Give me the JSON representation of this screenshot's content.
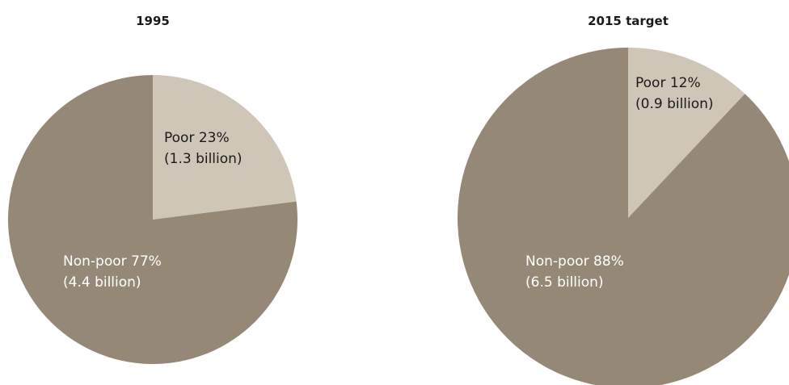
{
  "chart_data": [
    {
      "type": "pie",
      "title": "1995",
      "slices": [
        {
          "label": "Poor",
          "percent": 23,
          "detail": "(1.3 billion)",
          "line1": "Poor 23%",
          "color": "#d0c6b8",
          "text_color": "#1a1a1a"
        },
        {
          "label": "Non-poor",
          "percent": 77,
          "detail": "(4.4 billion)",
          "line1": "Non-poor 77%",
          "color": "#968876",
          "text_color": "#ffffff"
        }
      ]
    },
    {
      "type": "pie",
      "title": "2015 target",
      "slices": [
        {
          "label": "Poor",
          "percent": 12,
          "detail": "(0.9 billion)",
          "line1": "Poor 12%",
          "color": "#d0c6b8",
          "text_color": "#1a1a1a"
        },
        {
          "label": "Non-poor",
          "percent": 88,
          "detail": "(6.5 billion)",
          "line1": "Non-poor 88%",
          "color": "#968876",
          "text_color": "#ffffff"
        }
      ]
    }
  ]
}
